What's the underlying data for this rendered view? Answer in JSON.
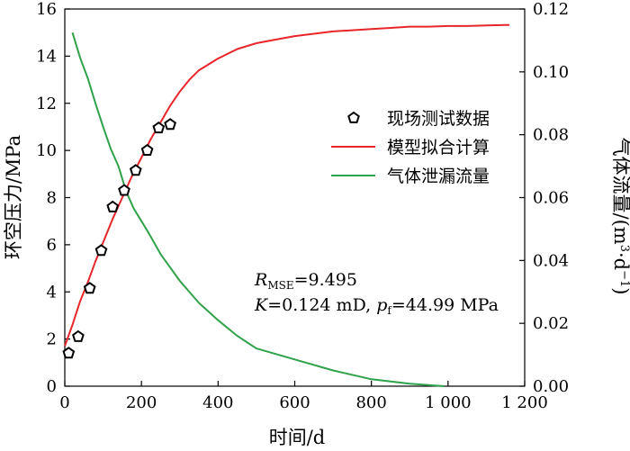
{
  "chart_data": {
    "type": "line",
    "xlabel": "时间/d",
    "ylabel_left": "环空压力/MPa",
    "ylabel_right": "气体流量/(m³·d⁻¹)",
    "ylabel_right_parts": {
      "base": "气体流量/(m",
      "exp1": "3",
      "mid": "·d",
      "exp2": "−1",
      "end": ")"
    },
    "xlim": [
      0,
      1200
    ],
    "ylim_left": [
      0,
      16
    ],
    "ylim_right": [
      0,
      0.12
    ],
    "x_ticks": [
      0,
      200,
      400,
      600,
      800,
      1000,
      1200
    ],
    "x_tick_labels": [
      "0",
      "200",
      "400",
      "600",
      "800",
      "1 000",
      "1 200"
    ],
    "y_left_ticks": [
      0,
      2,
      4,
      6,
      8,
      10,
      12,
      14,
      16
    ],
    "y_left_tick_labels": [
      "0",
      "2",
      "4",
      "6",
      "8",
      "10",
      "12",
      "14",
      "16"
    ],
    "y_right_ticks": [
      0,
      0.02,
      0.04,
      0.06,
      0.08,
      0.1,
      0.12
    ],
    "y_right_tick_labels": [
      "0.00",
      "0.02",
      "0.04",
      "0.06",
      "0.08",
      "0.10",
      "0.12"
    ],
    "grid": false,
    "legend_position": "right-center",
    "series": [
      {
        "name": "现场测试数据",
        "kind": "scatter",
        "axis": "left",
        "color": "#000000",
        "x": [
          10,
          35,
          65,
          95,
          125,
          155,
          185,
          215,
          245,
          275
        ],
        "y": [
          1.4,
          2.1,
          4.15,
          5.75,
          7.6,
          8.3,
          9.15,
          10.0,
          10.95,
          11.1
        ]
      },
      {
        "name": "模型拟合计算",
        "kind": "line",
        "axis": "left",
        "color": "#e8262a",
        "x": [
          0,
          20,
          40,
          60,
          80,
          100,
          125,
          150,
          175,
          200,
          225,
          250,
          275,
          300,
          325,
          350,
          400,
          450,
          500,
          550,
          600,
          650,
          700,
          750,
          800,
          850,
          900,
          950,
          1000,
          1050,
          1100,
          1150,
          1160
        ],
        "y": [
          1.7,
          2.6,
          3.6,
          4.4,
          5.3,
          6.1,
          7.1,
          8.0,
          8.9,
          9.7,
          10.5,
          11.2,
          11.9,
          12.5,
          13.0,
          13.4,
          13.9,
          14.3,
          14.55,
          14.7,
          14.85,
          14.95,
          15.05,
          15.1,
          15.15,
          15.2,
          15.25,
          15.25,
          15.28,
          15.28,
          15.3,
          15.32,
          15.32
        ]
      },
      {
        "name": "气体泄漏流量",
        "kind": "line",
        "axis": "right",
        "color": "#2fa24a",
        "x": [
          20,
          40,
          60,
          80,
          100,
          120,
          140,
          160,
          180,
          200,
          220,
          250,
          300,
          350,
          400,
          450,
          500,
          600,
          700,
          800,
          900,
          990
        ],
        "y": [
          0.1125,
          0.1045,
          0.098,
          0.09,
          0.0825,
          0.0755,
          0.07,
          0.062,
          0.0565,
          0.0525,
          0.0485,
          0.042,
          0.0335,
          0.0265,
          0.021,
          0.016,
          0.012,
          0.0085,
          0.005,
          0.0022,
          0.0008,
          0.0
        ]
      }
    ],
    "annotations": {
      "rmse_symbol": "R",
      "rmse_sub": "MSE",
      "rmse_value": "=9.495",
      "k_symbol": "K",
      "k_value": "=0.124 mD, ",
      "pf_symbol": "p",
      "pf_sub": "f",
      "pf_value": "=44.99 MPa"
    }
  }
}
